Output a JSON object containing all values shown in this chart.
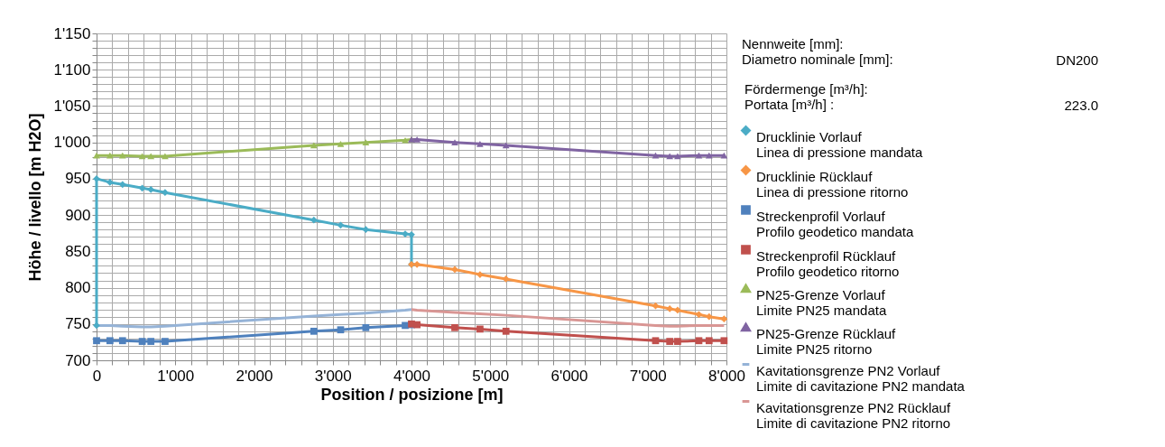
{
  "chart_data": {
    "type": "line",
    "xlabel": "Position / posizione [m]",
    "ylabel": "Höhe / livello [m H2O]",
    "xlim": [
      0,
      8000
    ],
    "ylim": [
      700,
      1150
    ],
    "xticks": [
      {
        "value": 0,
        "label": "0"
      },
      {
        "value": 200,
        "label": null
      },
      {
        "value": 400,
        "label": null
      },
      {
        "value": 600,
        "label": null
      },
      {
        "value": 800,
        "label": null
      },
      {
        "value": 1000,
        "label": "1'000"
      },
      {
        "value": 1200,
        "label": null
      },
      {
        "value": 1400,
        "label": null
      },
      {
        "value": 1600,
        "label": null
      },
      {
        "value": 1800,
        "label": null
      },
      {
        "value": 2000,
        "label": "2'000"
      },
      {
        "value": 2200,
        "label": null
      },
      {
        "value": 2400,
        "label": null
      },
      {
        "value": 2600,
        "label": null
      },
      {
        "value": 2800,
        "label": null
      },
      {
        "value": 3000,
        "label": "3'000"
      },
      {
        "value": 3200,
        "label": null
      },
      {
        "value": 3400,
        "label": null
      },
      {
        "value": 3600,
        "label": null
      },
      {
        "value": 3800,
        "label": null
      },
      {
        "value": 4000,
        "label": "4'000"
      },
      {
        "value": 4200,
        "label": null
      },
      {
        "value": 4400,
        "label": null
      },
      {
        "value": 4600,
        "label": null
      },
      {
        "value": 4800,
        "label": null
      },
      {
        "value": 5000,
        "label": "5'000"
      },
      {
        "value": 5200,
        "label": null
      },
      {
        "value": 5400,
        "label": null
      },
      {
        "value": 5600,
        "label": null
      },
      {
        "value": 5800,
        "label": null
      },
      {
        "value": 6000,
        "label": "6'000"
      },
      {
        "value": 6200,
        "label": null
      },
      {
        "value": 6400,
        "label": null
      },
      {
        "value": 6600,
        "label": null
      },
      {
        "value": 6800,
        "label": null
      },
      {
        "value": 7000,
        "label": "7'000"
      },
      {
        "value": 7200,
        "label": null
      },
      {
        "value": 7400,
        "label": null
      },
      {
        "value": 7600,
        "label": null
      },
      {
        "value": 7800,
        "label": null
      },
      {
        "value": 8000,
        "label": "8'000"
      }
    ],
    "yticks": [
      700,
      {
        "value": 710,
        "label": null
      },
      {
        "value": 720,
        "label": null
      },
      {
        "value": 730,
        "label": null
      },
      {
        "value": 740,
        "label": null
      },
      750,
      {
        "value": 760,
        "label": null
      },
      {
        "value": 770,
        "label": null
      },
      {
        "value": 780,
        "label": null
      },
      {
        "value": 790,
        "label": null
      },
      800,
      {
        "value": 810,
        "label": null
      },
      {
        "value": 820,
        "label": null
      },
      {
        "value": 830,
        "label": null
      },
      {
        "value": 840,
        "label": null
      },
      850,
      {
        "value": 860,
        "label": null
      },
      {
        "value": 870,
        "label": null
      },
      {
        "value": 880,
        "label": null
      },
      {
        "value": 890,
        "label": null
      },
      900,
      {
        "value": 910,
        "label": null
      },
      {
        "value": 920,
        "label": null
      },
      {
        "value": 930,
        "label": null
      },
      {
        "value": 940,
        "label": null
      },
      950,
      {
        "value": 960,
        "label": null
      },
      {
        "value": 970,
        "label": null
      },
      {
        "value": 980,
        "label": null
      },
      {
        "value": 990,
        "label": null
      },
      {
        "value": 1000,
        "label": "1'000"
      },
      {
        "value": 1010,
        "label": null
      },
      {
        "value": 1020,
        "label": null
      },
      {
        "value": 1030,
        "label": null
      },
      {
        "value": 1040,
        "label": null
      },
      {
        "value": 1050,
        "label": "1'050"
      },
      {
        "value": 1060,
        "label": null
      },
      {
        "value": 1070,
        "label": null
      },
      {
        "value": 1080,
        "label": null
      },
      {
        "value": 1090,
        "label": null
      },
      {
        "value": 1100,
        "label": "1'100"
      },
      {
        "value": 1110,
        "label": null
      },
      {
        "value": 1120,
        "label": null
      },
      {
        "value": 1130,
        "label": null
      },
      {
        "value": 1140,
        "label": null
      },
      {
        "value": 1150,
        "label": "1'150"
      }
    ],
    "grid": true,
    "legend": "right",
    "line_style": "solid",
    "annotations": [
      "Nennweite [mm]:\nDiametro nominale [mm]:",
      "DN200",
      "Fördermenge [m³/h]:\nPortata [m³/h] :",
      "223.0"
    ],
    "series": [
      {
        "name": "Drucklinie Vorlauf\nLinea di pressione mandata",
        "color": "#4bacc6",
        "marker": "diamond",
        "x": [
          0,
          0,
          170,
          330,
          580,
          690,
          870,
          2760,
          3100,
          3420,
          3920,
          4000,
          4000
        ],
        "values": [
          748,
          950,
          945,
          942,
          937,
          935,
          931,
          893,
          886,
          880,
          874,
          873,
          832
        ]
      },
      {
        "name": "Drucklinie Rücklauf\nLinea di pressione ritorno",
        "color": "#f79646",
        "marker": "diamond",
        "x": [
          4000,
          4070,
          4550,
          4870,
          5200,
          7100,
          7280,
          7380,
          7650,
          7780,
          7970
        ],
        "values": [
          832,
          832,
          825,
          818,
          812,
          775,
          771,
          769,
          763,
          760,
          757
        ]
      },
      {
        "name": "Streckenprofil Vorlauf\nProfilo geodetico mandata",
        "color": "#4f81bd",
        "marker": "square",
        "x": [
          0,
          170,
          330,
          580,
          690,
          870,
          2760,
          3100,
          3420,
          3920,
          4000
        ],
        "values": [
          727,
          727,
          727,
          726,
          726,
          726,
          740,
          742,
          745,
          748,
          749
        ]
      },
      {
        "name": "Streckenprofil Rücklauf\nProfilo geodetico ritorno",
        "color": "#c0504d",
        "marker": "square",
        "x": [
          4000,
          4070,
          4550,
          4870,
          5200,
          7100,
          7280,
          7380,
          7650,
          7780,
          7970
        ],
        "values": [
          750,
          749,
          745,
          743,
          740,
          727,
          726,
          726,
          727,
          727,
          727
        ]
      },
      {
        "name": "PN25-Grenze Vorlauf\nLimite PN25 mandata",
        "color": "#9bbb59",
        "marker": "triangle",
        "x": [
          0,
          170,
          330,
          580,
          690,
          870,
          2760,
          3100,
          3420,
          3920,
          4000
        ],
        "values": [
          982,
          982,
          982,
          981,
          981,
          981,
          996,
          998,
          1000,
          1003,
          1004
        ]
      },
      {
        "name": "PN25-Grenze Rücklauf\nLimite PN25 ritorno",
        "color": "#8064a2",
        "marker": "triangle",
        "x": [
          4000,
          4070,
          4550,
          4870,
          5200,
          7100,
          7280,
          7380,
          7650,
          7780,
          7970
        ],
        "values": [
          1004,
          1004,
          1000,
          998,
          996,
          982,
          981,
          981,
          982,
          982,
          982
        ]
      },
      {
        "name": "Kavitationsgrenze PN2 Vorlauf\nLimite di cavitazione PN2 mandata",
        "color": "#95b3d7",
        "marker": "none",
        "x": [
          0,
          170,
          330,
          580,
          690,
          870,
          2760,
          3100,
          3420,
          3920,
          4000
        ],
        "values": [
          748,
          748,
          747,
          746,
          746,
          747,
          761,
          763,
          765,
          769,
          770
        ]
      },
      {
        "name": "Kavitationsgrenze PN2 Rücklauf\nLimite di cavitazione PN2 ritorno",
        "color": "#d99694",
        "marker": "none",
        "x": [
          4000,
          4070,
          4550,
          4870,
          5200,
          7100,
          7280,
          7380,
          7650,
          7780,
          7970
        ],
        "values": [
          770,
          769,
          766,
          764,
          762,
          748,
          747,
          747,
          748,
          748,
          748
        ]
      }
    ]
  }
}
